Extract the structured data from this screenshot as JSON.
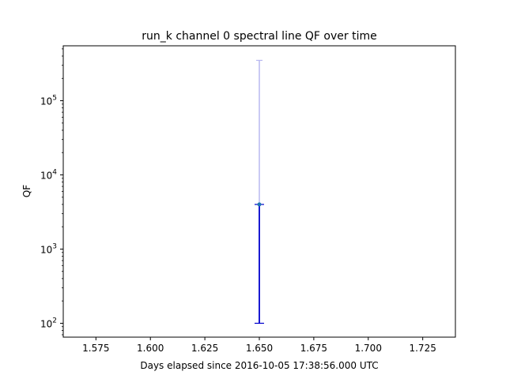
{
  "chart_data": {
    "type": "scatter",
    "title": "run_k channel 0 spectral line QF over time",
    "xlabel": "Days elapsed since 2016-10-05 17:38:56.000 UTC",
    "ylabel": "QF",
    "xlim": [
      1.56,
      1.74
    ],
    "ylim": [
      65,
      550000
    ],
    "yscale": "log",
    "grid": false,
    "x_ticks": [
      1.575,
      1.6,
      1.625,
      1.65,
      1.675,
      1.7,
      1.725
    ],
    "x_tick_labels": [
      "1.575",
      "1.600",
      "1.625",
      "1.650",
      "1.675",
      "1.700",
      "1.725"
    ],
    "y_ticks": [
      100,
      1000,
      10000,
      100000
    ],
    "y_tick_labels": [
      {
        "base": "10",
        "exp": "2"
      },
      {
        "base": "10",
        "exp": "3"
      },
      {
        "base": "10",
        "exp": "4"
      },
      {
        "base": "10",
        "exp": "5"
      }
    ],
    "points": [
      {
        "x": 1.65,
        "y": 4000,
        "err_low": 100,
        "err_high": 350000
      }
    ],
    "colors": {
      "marker": "#1f77b4",
      "lower_error": "#0000cc",
      "upper_error": "#b8b8f0"
    }
  }
}
